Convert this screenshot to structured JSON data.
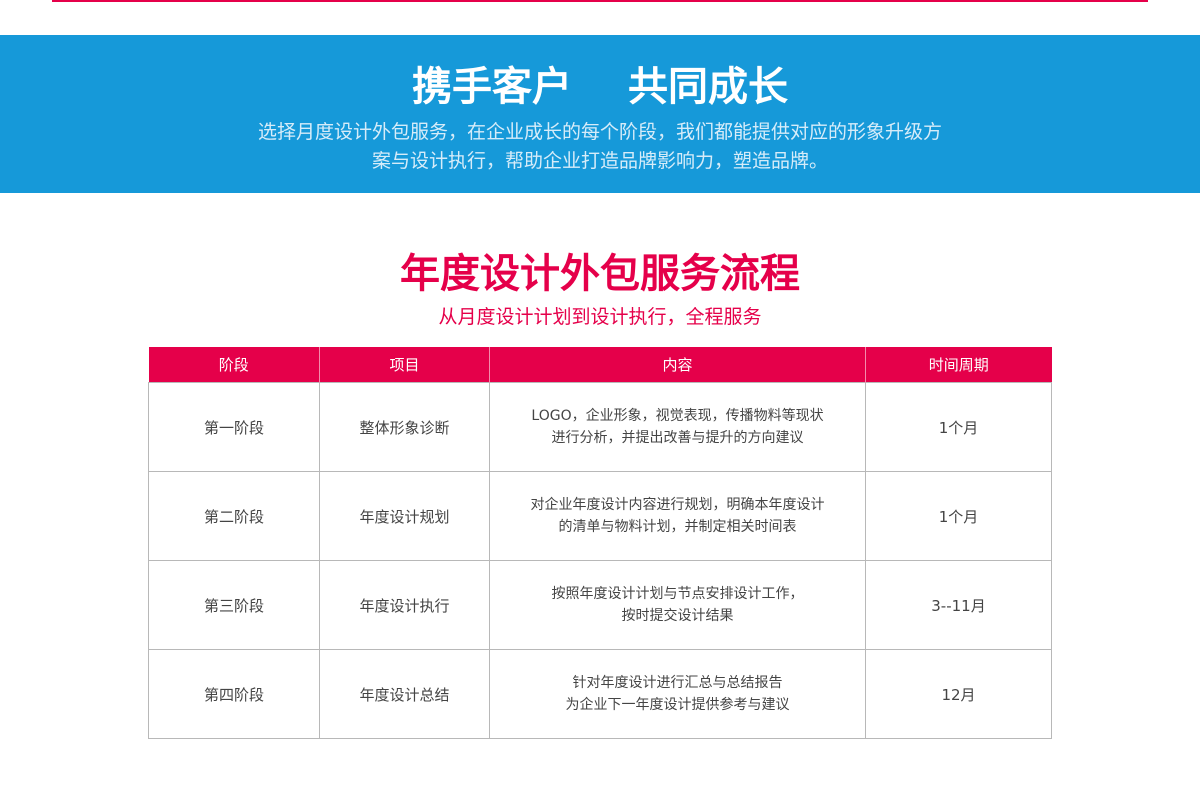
{
  "banner": {
    "title_part1": "携手客户",
    "title_part2": "共同成长",
    "subtitle_line1": "选择月度设计外包服务，在企业成长的每个阶段，我们都能提供对应的形象升级方",
    "subtitle_line2": "案与设计执行，帮助企业打造品牌影响力，塑造品牌。"
  },
  "section": {
    "title": "年度设计外包服务流程",
    "subtitle": "从月度设计计划到设计执行，全程服务"
  },
  "colors": {
    "accent_red": "#e5004a",
    "banner_blue": "#1699d9"
  },
  "table": {
    "headers": [
      "阶段",
      "项目",
      "内容",
      "时间周期"
    ],
    "rows": [
      {
        "stage": "第一阶段",
        "item": "整体形象诊断",
        "content1": "LOGO，企业形象，视觉表现，传播物料等现状",
        "content2": "进行分析，并提出改善与提升的方向建议",
        "period": "1个月"
      },
      {
        "stage": "第二阶段",
        "item": "年度设计规划",
        "content1": "对企业年度设计内容进行规划，明确本年度设计",
        "content2": "的清单与物料计划，并制定相关时间表",
        "period": "1个月"
      },
      {
        "stage": "第三阶段",
        "item": "年度设计执行",
        "content1": "按照年度设计计划与节点安排设计工作，",
        "content2": "按时提交设计结果",
        "period": "3--11月"
      },
      {
        "stage": "第四阶段",
        "item": "年度设计总结",
        "content1": "针对年度设计进行汇总与总结报告",
        "content2": "为企业下一年度设计提供参考与建议",
        "period": "12月"
      }
    ]
  }
}
